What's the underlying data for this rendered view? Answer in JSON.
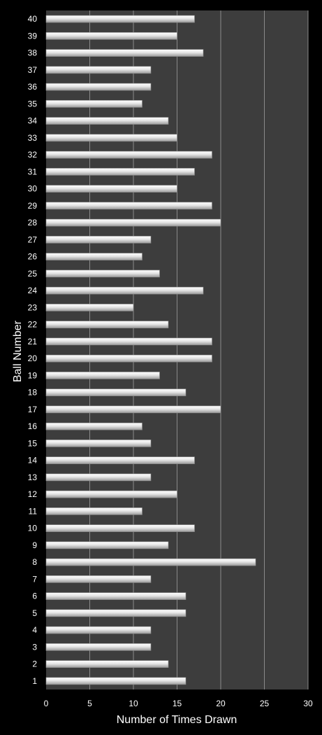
{
  "chart_data": {
    "type": "bar",
    "orientation": "horizontal",
    "xlabel": "Number of Times Drawn",
    "ylabel": "Ball Number",
    "xlim": [
      0,
      30
    ],
    "xticks": [
      0,
      5,
      10,
      15,
      20,
      25,
      30
    ],
    "grid": "vertical",
    "colors": {
      "background": "#000000",
      "plot_area": "#3d3d3d",
      "bar": "#d9d9d9",
      "grid": "#8a8a8a",
      "text": "#ffffff"
    },
    "categories": [
      "1",
      "2",
      "3",
      "4",
      "5",
      "6",
      "7",
      "8",
      "9",
      "10",
      "11",
      "12",
      "13",
      "14",
      "15",
      "16",
      "17",
      "18",
      "19",
      "20",
      "21",
      "22",
      "23",
      "24",
      "25",
      "26",
      "27",
      "28",
      "29",
      "30",
      "31",
      "32",
      "33",
      "34",
      "35",
      "36",
      "37",
      "38",
      "39",
      "40"
    ],
    "values": [
      16,
      14,
      12,
      12,
      16,
      16,
      12,
      24,
      14,
      17,
      11,
      15,
      12,
      17,
      12,
      11,
      20,
      16,
      13,
      19,
      19,
      14,
      10,
      18,
      13,
      11,
      12,
      20,
      19,
      15,
      17,
      19,
      15,
      14,
      11,
      12,
      12,
      18,
      15,
      17
    ]
  }
}
